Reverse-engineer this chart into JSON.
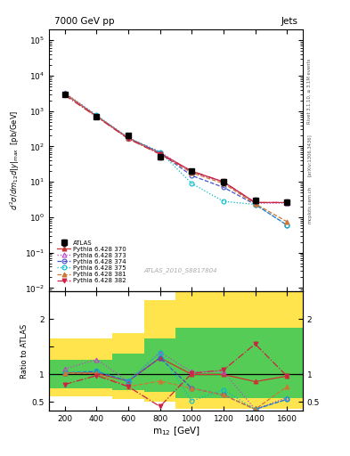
{
  "title_left": "7000 GeV pp",
  "title_right": "Jets",
  "right_label": "Rivet 3.1.10, ≥ 3.1M events",
  "arxiv_label": "[arXiv:1306.3436]",
  "mcplots_label": "mcplots.cern.ch",
  "watermark": "ATLAS_2010_S8817804",
  "ylabel_main": "$d^2\\sigma/dm_{12}d|y|_{max}$  [pb/GeV]",
  "ylabel_ratio": "Ratio to ATLAS",
  "xlabel": "m$_{12}$ [GeV]",
  "x_values": [
    200,
    400,
    600,
    800,
    1000,
    1200,
    1400,
    1600
  ],
  "atlas_y": [
    3000,
    700,
    200,
    50,
    20,
    10,
    3,
    2.7
  ],
  "atlas_yerr": [
    300,
    60,
    25,
    8,
    3,
    2,
    0.5,
    0.5
  ],
  "series": [
    {
      "label": "Pythia 6.428 370",
      "color": "#cc3333",
      "marker": "^",
      "linestyle": "-",
      "filled": true,
      "y": [
        3100,
        720,
        175,
        65,
        20,
        10,
        2.6,
        2.6
      ],
      "ratio": [
        1.03,
        1.02,
        0.88,
        1.3,
        1.0,
        1.0,
        0.87,
        0.97
      ]
    },
    {
      "label": "Pythia 6.428 373",
      "color": "#bb44cc",
      "marker": "^",
      "linestyle": ":",
      "filled": false,
      "y": [
        3300,
        750,
        175,
        70,
        19,
        10,
        2.5,
        2.5
      ],
      "ratio": [
        1.1,
        1.27,
        0.88,
        1.4,
        1.05,
        1.05,
        0.37,
        0.58
      ]
    },
    {
      "label": "Pythia 6.428 374",
      "color": "#4455cc",
      "marker": "o",
      "linestyle": "--",
      "filled": false,
      "y": [
        3100,
        720,
        170,
        65,
        15,
        7,
        2.3,
        0.6
      ],
      "ratio": [
        1.03,
        1.05,
        0.88,
        1.3,
        0.75,
        0.63,
        0.37,
        0.55
      ]
    },
    {
      "label": "Pythia 6.428 375",
      "color": "#00bbcc",
      "marker": "o",
      "linestyle": ":",
      "filled": false,
      "y": [
        3100,
        760,
        175,
        70,
        9,
        2.8,
        2.3,
        0.6
      ],
      "ratio": [
        1.03,
        1.07,
        0.88,
        1.4,
        0.52,
        0.72,
        0.37,
        0.55
      ]
    },
    {
      "label": "Pythia 6.428 381",
      "color": "#cc7733",
      "marker": "^",
      "linestyle": "--",
      "filled": true,
      "y": [
        3100,
        720,
        168,
        62,
        18,
        9,
        2.4,
        0.75
      ],
      "ratio": [
        1.03,
        1.02,
        0.78,
        0.88,
        0.75,
        0.63,
        0.37,
        0.78
      ]
    },
    {
      "label": "Pythia 6.428 382",
      "color": "#cc2244",
      "marker": "v",
      "linestyle": "-.",
      "filled": true,
      "y": [
        2800,
        690,
        165,
        60,
        20,
        10,
        2.6,
        2.6
      ],
      "ratio": [
        0.82,
        0.98,
        0.78,
        0.42,
        1.02,
        1.08,
        1.55,
        0.97
      ]
    }
  ],
  "yellow_bins_x": [
    100,
    300,
    500,
    700,
    900,
    1100,
    1300,
    1500,
    1700
  ],
  "yellow_top": [
    1.65,
    1.65,
    1.75,
    2.35,
    2.5,
    2.5,
    2.5,
    2.5
  ],
  "yellow_bot": [
    0.6,
    0.6,
    0.55,
    0.5,
    0.38,
    0.38,
    0.38,
    0.38
  ],
  "green_bins_x": [
    100,
    300,
    500,
    700,
    900,
    1100,
    1300,
    1500,
    1700
  ],
  "green_top": [
    1.27,
    1.27,
    1.37,
    1.65,
    1.85,
    1.85,
    1.85,
    1.85
  ],
  "green_bot": [
    0.75,
    0.75,
    0.72,
    0.68,
    0.58,
    0.58,
    0.58,
    0.58
  ],
  "ylim_main": [
    0.008,
    200000
  ],
  "ylim_ratio": [
    0.35,
    2.5
  ],
  "xlim": [
    100,
    1700
  ]
}
